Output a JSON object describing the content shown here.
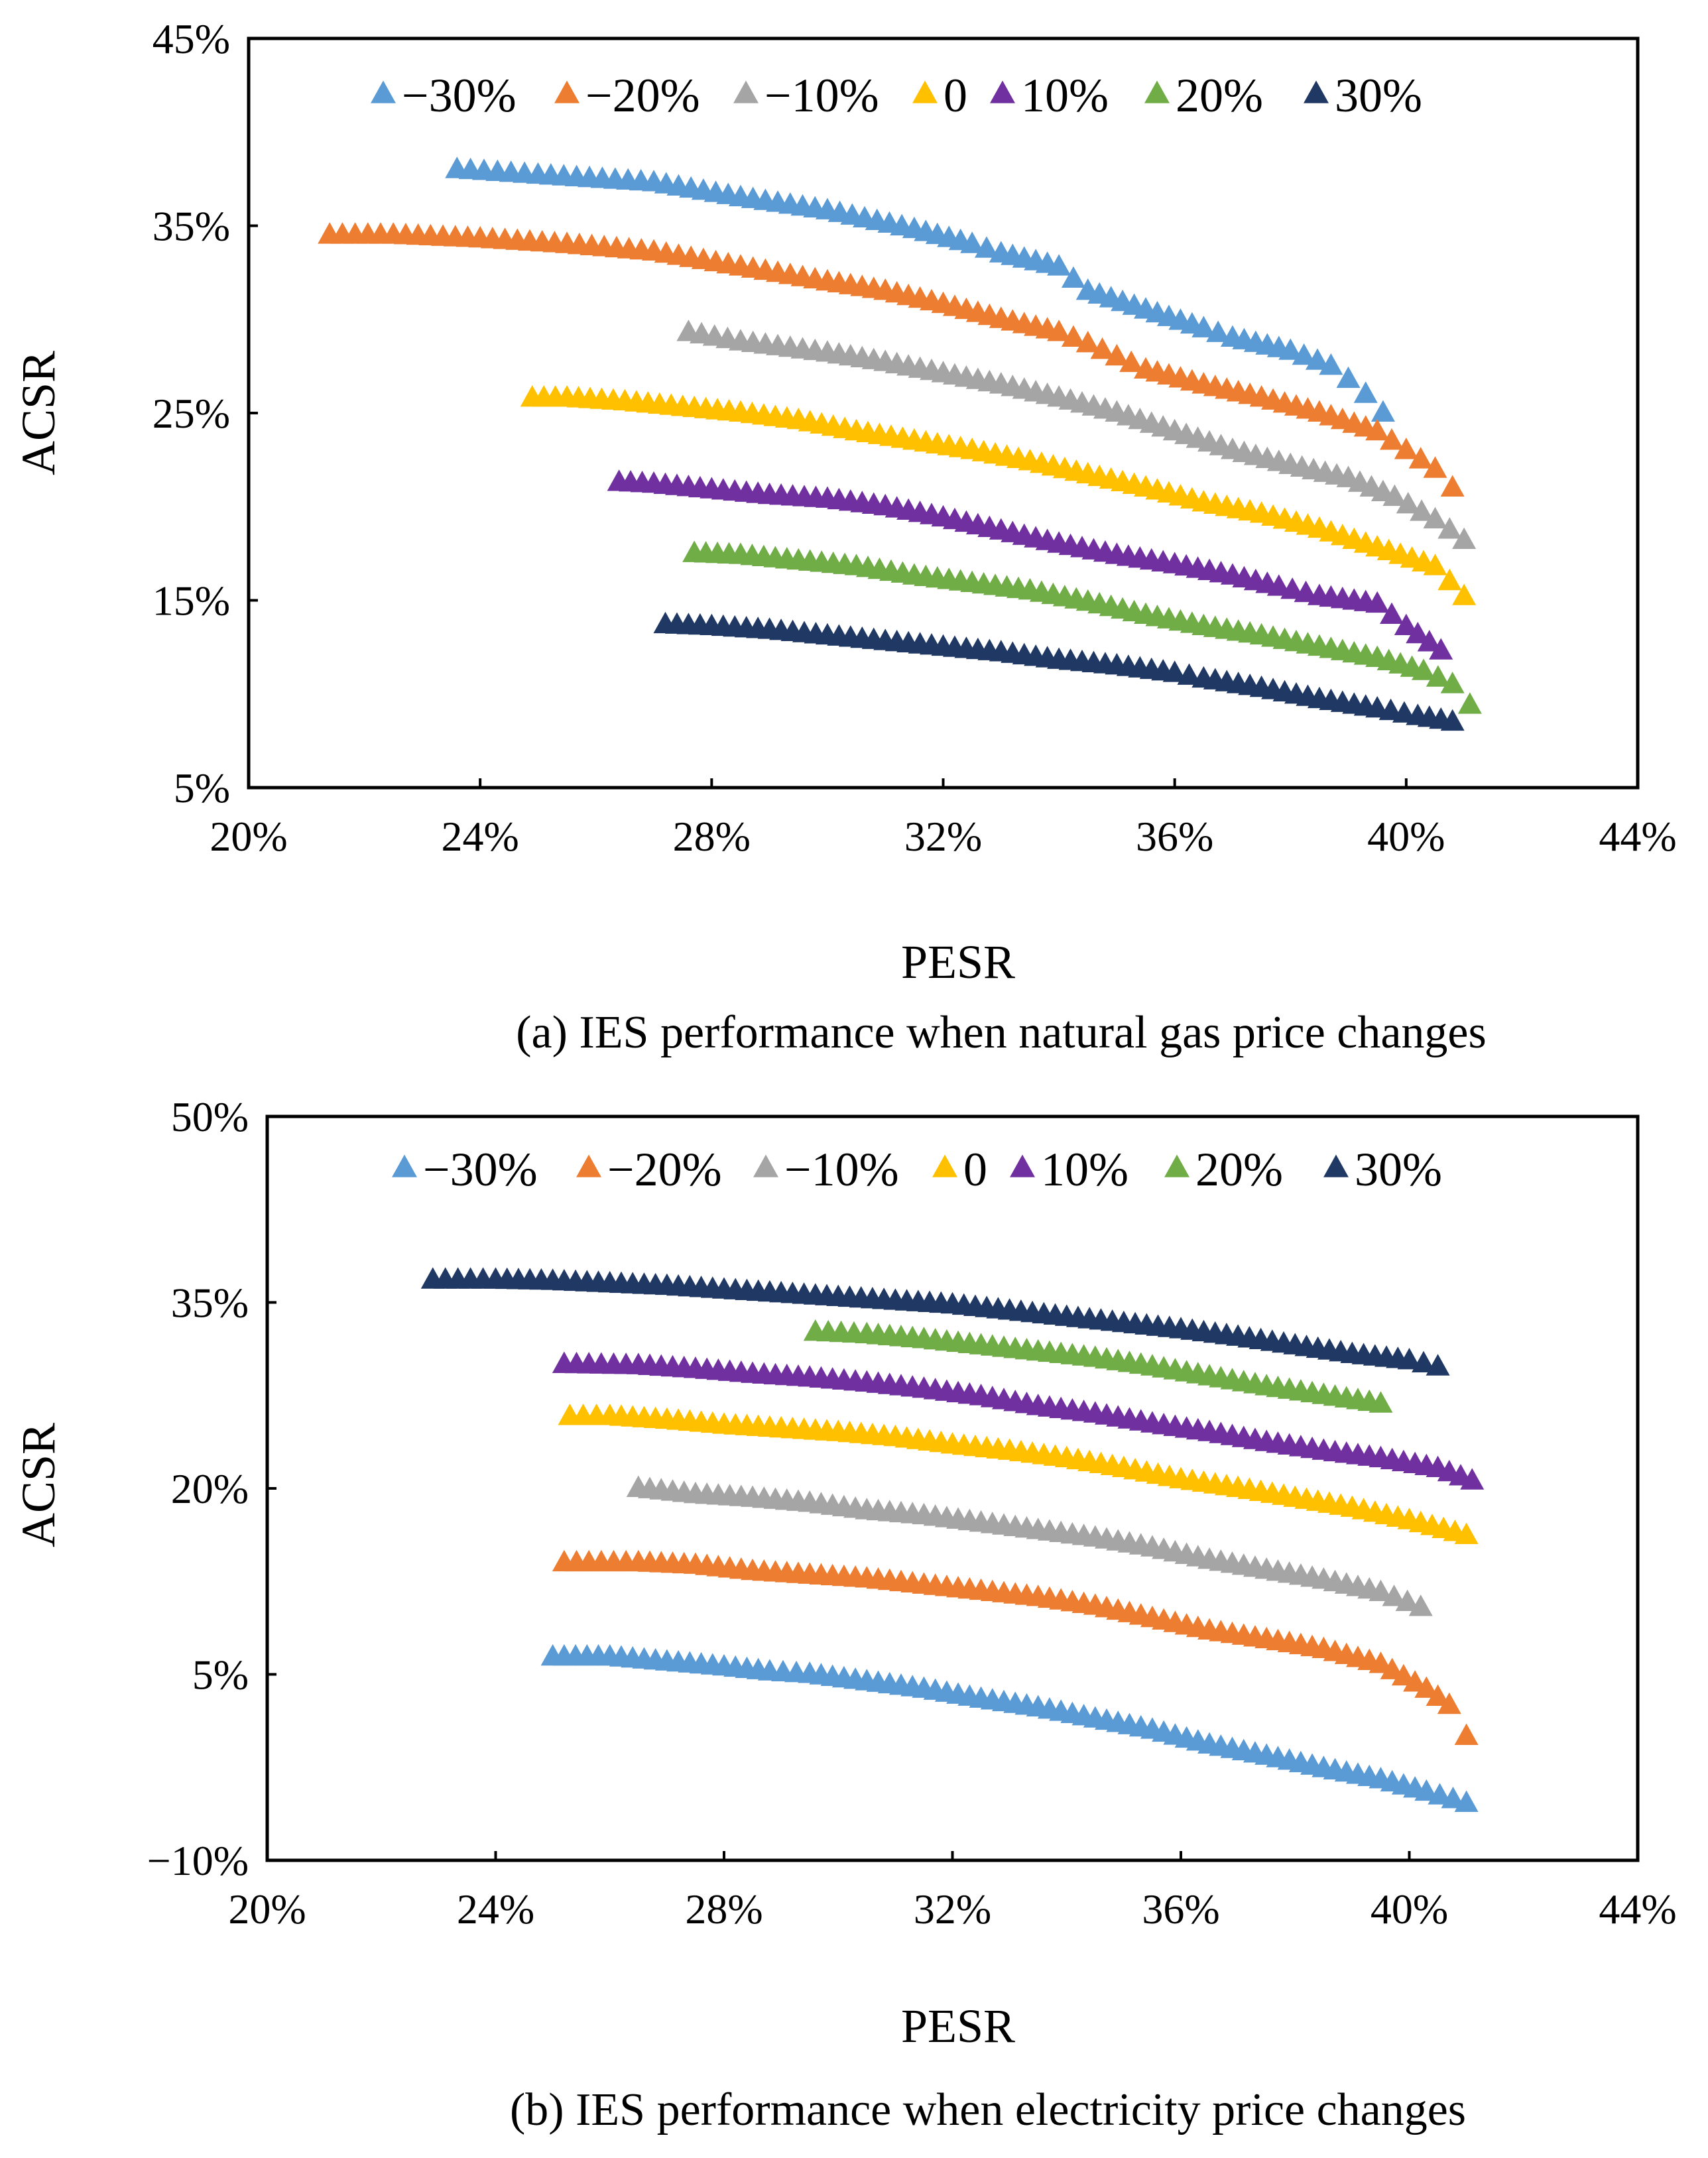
{
  "chart_data": [
    {
      "type": "scatter",
      "panel": "a",
      "caption": "(a) IES performance when natural gas price changes",
      "xlabel": "PESR",
      "ylabel": "ACSR",
      "xlim": [
        20,
        44
      ],
      "ylim": [
        5,
        45
      ],
      "x_ticks": [
        20,
        24,
        28,
        32,
        36,
        40,
        44
      ],
      "x_tick_labels": [
        "20%",
        "24%",
        "28%",
        "32%",
        "36%",
        "40%",
        "44%"
      ],
      "y_ticks": [
        5,
        15,
        25,
        35,
        45
      ],
      "y_tick_labels": [
        "5%",
        "15%",
        "25%",
        "35%",
        "45%"
      ],
      "legend_position": "top",
      "series": [
        {
          "name": "−30%",
          "color": "#5B9BD5",
          "points": [
            [
              23.6,
              38.0
            ],
            [
              25.0,
              37.7
            ],
            [
              27.0,
              37.3
            ],
            [
              28.5,
              36.5
            ],
            [
              30.0,
              35.8
            ],
            [
              31.5,
              34.8
            ],
            [
              32.5,
              34.0
            ],
            [
              33.0,
              33.5
            ],
            [
              34.0,
              32.8
            ],
            [
              34.5,
              31.5
            ],
            [
              35.5,
              30.5
            ],
            [
              36.5,
              29.5
            ],
            [
              37.0,
              29.0
            ],
            [
              38.0,
              28.3
            ],
            [
              38.7,
              27.5
            ],
            [
              39.0,
              26.8
            ],
            [
              39.3,
              26.0
            ],
            [
              39.6,
              25.0
            ]
          ]
        },
        {
          "name": "−20%",
          "color": "#ED7D31",
          "points": [
            [
              21.4,
              34.5
            ],
            [
              22.5,
              34.5
            ],
            [
              24.0,
              34.3
            ],
            [
              25.5,
              34.0
            ],
            [
              27.0,
              33.6
            ],
            [
              28.5,
              32.8
            ],
            [
              30.0,
              32.0
            ],
            [
              31.0,
              31.5
            ],
            [
              32.0,
              30.8
            ],
            [
              33.0,
              30.0
            ],
            [
              34.0,
              29.3
            ],
            [
              34.5,
              28.7
            ],
            [
              35.0,
              28.0
            ],
            [
              35.5,
              27.3
            ],
            [
              36.5,
              26.5
            ],
            [
              37.5,
              25.8
            ],
            [
              38.5,
              25.0
            ],
            [
              39.5,
              24.0
            ],
            [
              40.0,
              23.0
            ],
            [
              40.5,
              22.0
            ],
            [
              40.8,
              21.0
            ]
          ]
        },
        {
          "name": "−10%",
          "color": "#A5A5A5",
          "points": [
            [
              27.6,
              29.3
            ],
            [
              28.5,
              28.8
            ],
            [
              30.0,
              28.2
            ],
            [
              31.0,
              27.7
            ],
            [
              32.0,
              27.1
            ],
            [
              33.0,
              26.5
            ],
            [
              34.0,
              25.8
            ],
            [
              35.0,
              25.0
            ],
            [
              36.0,
              24.0
            ],
            [
              37.0,
              23.0
            ],
            [
              38.0,
              22.2
            ],
            [
              39.0,
              21.5
            ],
            [
              39.8,
              20.5
            ],
            [
              40.5,
              19.3
            ],
            [
              41.0,
              18.2
            ]
          ]
        },
        {
          "name": "0",
          "color": "#FFC000",
          "points": [
            [
              24.9,
              25.8
            ],
            [
              25.5,
              25.8
            ],
            [
              26.5,
              25.6
            ],
            [
              27.5,
              25.3
            ],
            [
              28.5,
              25.0
            ],
            [
              29.5,
              24.6
            ],
            [
              30.5,
              24.0
            ],
            [
              31.5,
              23.5
            ],
            [
              32.5,
              23.0
            ],
            [
              33.5,
              22.4
            ],
            [
              34.5,
              21.7
            ],
            [
              35.5,
              21.0
            ],
            [
              36.5,
              20.2
            ],
            [
              37.5,
              19.6
            ],
            [
              38.5,
              18.8
            ],
            [
              39.5,
              17.8
            ],
            [
              40.5,
              16.8
            ],
            [
              41.0,
              15.2
            ]
          ]
        },
        {
          "name": "10%",
          "color": "#7030A0",
          "points": [
            [
              26.4,
              21.3
            ],
            [
              27.0,
              21.2
            ],
            [
              28.0,
              20.9
            ],
            [
              29.0,
              20.6
            ],
            [
              30.0,
              20.4
            ],
            [
              31.0,
              20.0
            ],
            [
              32.0,
              19.4
            ],
            [
              33.0,
              18.7
            ],
            [
              34.0,
              18.0
            ],
            [
              35.0,
              17.4
            ],
            [
              36.0,
              16.9
            ],
            [
              37.0,
              16.3
            ],
            [
              37.8,
              15.7
            ],
            [
              38.5,
              15.2
            ],
            [
              39.5,
              14.8
            ],
            [
              40.0,
              13.6
            ],
            [
              40.6,
              12.3
            ]
          ]
        },
        {
          "name": "20%",
          "color": "#70AD47",
          "points": [
            [
              27.7,
              17.5
            ],
            [
              28.5,
              17.4
            ],
            [
              29.5,
              17.1
            ],
            [
              30.5,
              16.8
            ],
            [
              31.5,
              16.3
            ],
            [
              32.5,
              15.9
            ],
            [
              33.5,
              15.5
            ],
            [
              34.5,
              14.9
            ],
            [
              35.5,
              14.2
            ],
            [
              36.5,
              13.6
            ],
            [
              37.5,
              13.1
            ],
            [
              38.5,
              12.5
            ],
            [
              39.5,
              11.9
            ],
            [
              40.3,
              11.2
            ],
            [
              40.8,
              10.5
            ],
            [
              41.1,
              9.4
            ]
          ]
        },
        {
          "name": "30%",
          "color": "#203864",
          "points": [
            [
              27.2,
              13.7
            ],
            [
              28.0,
              13.6
            ],
            [
              29.0,
              13.4
            ],
            [
              30.0,
              13.1
            ],
            [
              31.0,
              12.8
            ],
            [
              32.0,
              12.5
            ],
            [
              33.0,
              12.2
            ],
            [
              34.0,
              11.8
            ],
            [
              35.0,
              11.5
            ],
            [
              36.0,
              11.1
            ],
            [
              36.5,
              10.8
            ],
            [
              37.5,
              10.3
            ],
            [
              38.5,
              9.7
            ],
            [
              39.5,
              9.2
            ],
            [
              40.2,
              8.8
            ],
            [
              40.8,
              8.5
            ]
          ]
        }
      ]
    },
    {
      "type": "scatter",
      "panel": "b",
      "caption": "(b) IES performance when electricity price changes",
      "xlabel": "PESR",
      "ylabel": "ACSR",
      "xlim": [
        20,
        44
      ],
      "ylim": [
        -10,
        50
      ],
      "x_ticks": [
        20,
        24,
        28,
        32,
        36,
        40,
        44
      ],
      "x_tick_labels": [
        "20%",
        "24%",
        "28%",
        "32%",
        "36%",
        "40%",
        "44%"
      ],
      "y_ticks": [
        -10,
        5,
        20,
        35,
        50
      ],
      "y_tick_labels": [
        "−10%",
        "5%",
        "20%",
        "35%",
        "50%"
      ],
      "legend_position": "top",
      "series": [
        {
          "name": "−30%",
          "color": "#5B9BD5",
          "points": [
            [
              25.0,
              6.4
            ],
            [
              26.0,
              6.4
            ],
            [
              27.0,
              6.0
            ],
            [
              28.0,
              5.6
            ],
            [
              28.8,
              5.2
            ],
            [
              29.5,
              5.0
            ],
            [
              30.5,
              4.4
            ],
            [
              31.5,
              3.8
            ],
            [
              32.5,
              3.0
            ],
            [
              33.5,
              2.3
            ],
            [
              34.5,
              1.4
            ],
            [
              35.5,
              0.5
            ],
            [
              36.5,
              -0.7
            ],
            [
              37.5,
              -1.6
            ],
            [
              38.5,
              -2.6
            ],
            [
              39.5,
              -3.5
            ],
            [
              40.3,
              -4.5
            ],
            [
              41.0,
              -5.4
            ]
          ]
        },
        {
          "name": "−20%",
          "color": "#ED7D31",
          "points": [
            [
              25.2,
              14.0
            ],
            [
              26.5,
              14.0
            ],
            [
              27.5,
              13.8
            ],
            [
              28.5,
              13.3
            ],
            [
              29.5,
              13.0
            ],
            [
              30.5,
              12.7
            ],
            [
              31.5,
              12.2
            ],
            [
              32.5,
              11.7
            ],
            [
              33.5,
              11.2
            ],
            [
              34.5,
              10.5
            ],
            [
              35.5,
              9.5
            ],
            [
              36.5,
              8.5
            ],
            [
              37.5,
              7.8
            ],
            [
              38.5,
              7.0
            ],
            [
              39.5,
              5.8
            ],
            [
              40.3,
              3.8
            ],
            [
              40.7,
              2.5
            ],
            [
              41.0,
              0.0
            ]
          ]
        },
        {
          "name": "−10%",
          "color": "#A5A5A5",
          "points": [
            [
              26.5,
              20.0
            ],
            [
              27.5,
              19.5
            ],
            [
              28.5,
              19.2
            ],
            [
              29.5,
              18.8
            ],
            [
              30.5,
              18.2
            ],
            [
              31.5,
              17.8
            ],
            [
              32.5,
              17.2
            ],
            [
              33.5,
              16.6
            ],
            [
              34.5,
              16.0
            ],
            [
              35.5,
              15.2
            ],
            [
              36.5,
              14.2
            ],
            [
              37.5,
              13.4
            ],
            [
              38.5,
              12.6
            ],
            [
              39.5,
              11.6
            ],
            [
              40.2,
              10.4
            ]
          ]
        },
        {
          "name": "0",
          "color": "#FFC000",
          "points": [
            [
              25.3,
              25.8
            ],
            [
              26.0,
              25.8
            ],
            [
              27.0,
              25.5
            ],
            [
              28.0,
              25.1
            ],
            [
              29.0,
              24.8
            ],
            [
              30.0,
              24.5
            ],
            [
              31.0,
              24.1
            ],
            [
              32.0,
              23.5
            ],
            [
              33.0,
              23.0
            ],
            [
              34.0,
              22.4
            ],
            [
              35.0,
              21.6
            ],
            [
              36.0,
              20.7
            ],
            [
              37.0,
              20.0
            ],
            [
              38.0,
              19.2
            ],
            [
              39.0,
              18.4
            ],
            [
              40.0,
              17.4
            ],
            [
              41.0,
              16.2
            ]
          ]
        },
        {
          "name": "10%",
          "color": "#7030A0",
          "points": [
            [
              25.2,
              30.0
            ],
            [
              26.5,
              29.9
            ],
            [
              27.5,
              29.6
            ],
            [
              28.5,
              29.2
            ],
            [
              29.5,
              28.9
            ],
            [
              30.5,
              28.5
            ],
            [
              31.5,
              28.0
            ],
            [
              32.5,
              27.4
            ],
            [
              33.5,
              26.6
            ],
            [
              34.5,
              26.0
            ],
            [
              35.5,
              25.2
            ],
            [
              36.5,
              24.5
            ],
            [
              37.5,
              23.7
            ],
            [
              38.5,
              23.0
            ],
            [
              39.5,
              22.4
            ],
            [
              40.5,
              21.6
            ],
            [
              41.1,
              20.6
            ]
          ]
        },
        {
          "name": "20%",
          "color": "#70AD47",
          "points": [
            [
              29.6,
              32.6
            ],
            [
              30.5,
              32.4
            ],
            [
              31.5,
              32.0
            ],
            [
              32.5,
              31.5
            ],
            [
              33.5,
              31.0
            ],
            [
              34.5,
              30.5
            ],
            [
              35.5,
              29.8
            ],
            [
              36.5,
              29.0
            ],
            [
              37.5,
              28.2
            ],
            [
              38.5,
              27.5
            ],
            [
              39.5,
              26.8
            ]
          ]
        },
        {
          "name": "30%",
          "color": "#203864",
          "points": [
            [
              22.9,
              36.8
            ],
            [
              24.0,
              36.8
            ],
            [
              25.0,
              36.7
            ],
            [
              26.0,
              36.5
            ],
            [
              27.0,
              36.3
            ],
            [
              28.0,
              36.0
            ],
            [
              29.0,
              35.7
            ],
            [
              30.0,
              35.4
            ],
            [
              31.0,
              35.1
            ],
            [
              32.0,
              34.8
            ],
            [
              33.0,
              34.3
            ],
            [
              34.0,
              33.8
            ],
            [
              35.0,
              33.3
            ],
            [
              36.0,
              32.8
            ],
            [
              37.0,
              32.2
            ],
            [
              38.0,
              31.5
            ],
            [
              39.0,
              30.8
            ],
            [
              40.0,
              30.3
            ],
            [
              40.5,
              29.8
            ]
          ]
        }
      ]
    }
  ]
}
